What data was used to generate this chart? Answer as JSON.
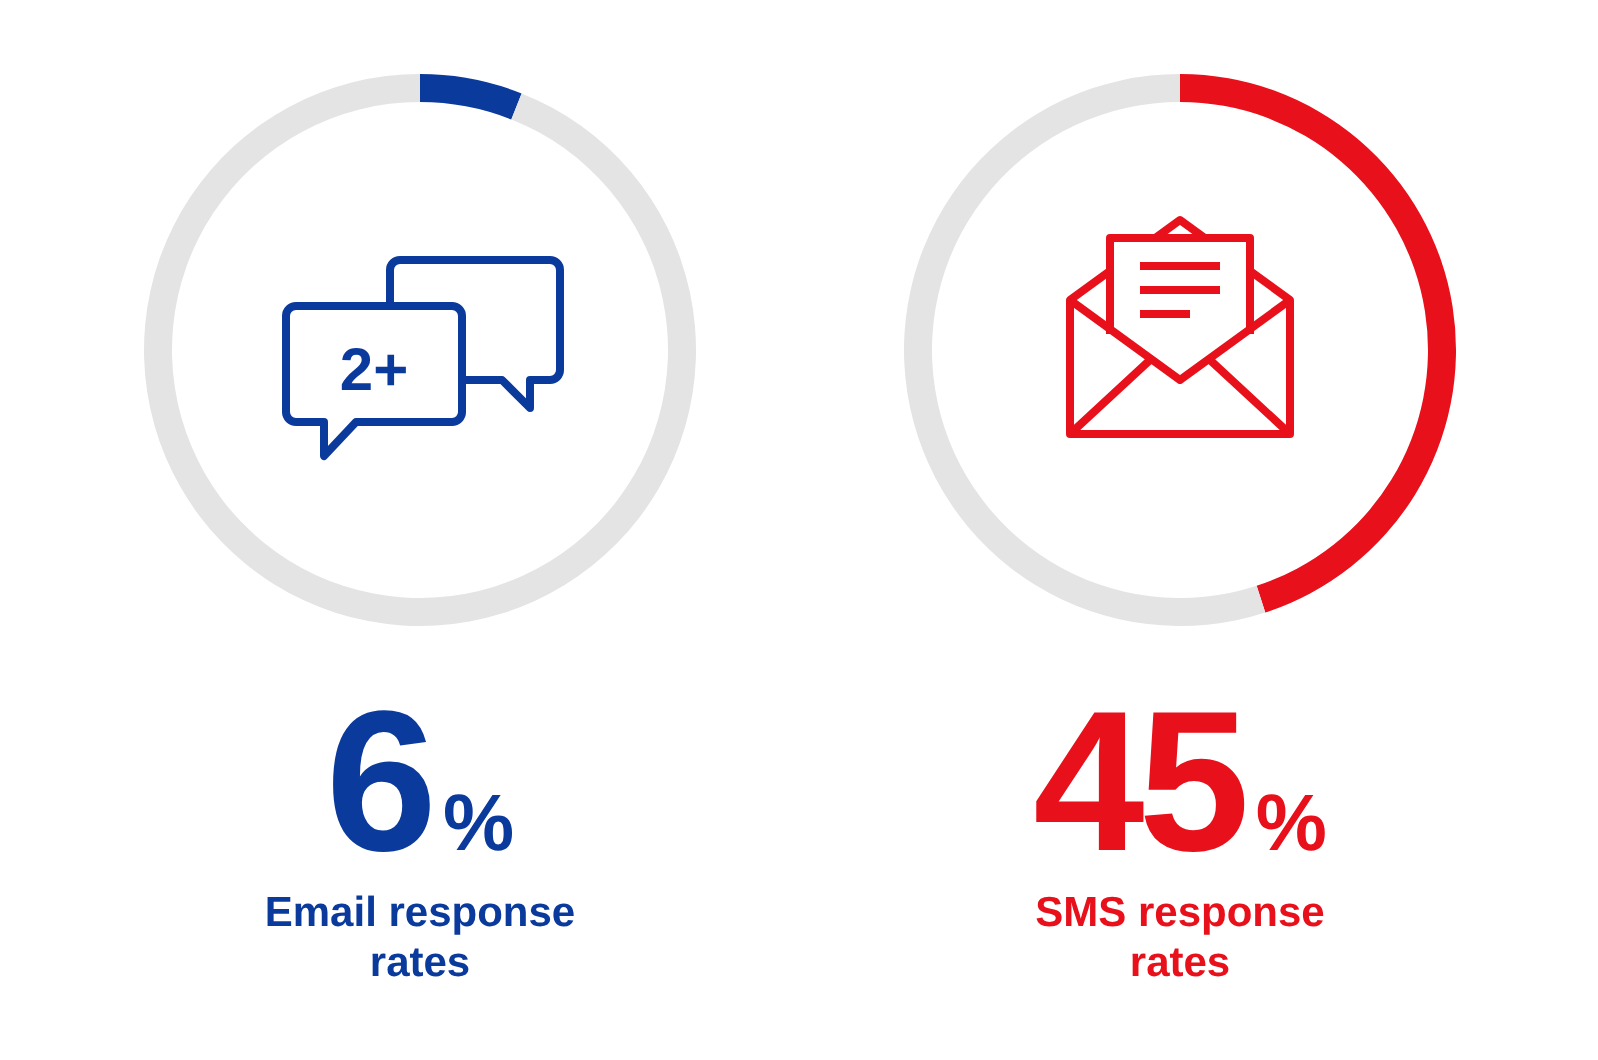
{
  "chart_data": [
    {
      "type": "donut",
      "title": "Email response rates",
      "categories": [
        null,
        null
      ],
      "values": [
        6,
        94
      ],
      "colors": [
        "#0a3a9c",
        "#e4e4e4"
      ],
      "annotations": [
        "2+",
        "6%"
      ]
    },
    {
      "type": "donut",
      "title": "SMS response rates",
      "categories": [
        null,
        null
      ],
      "values": [
        45,
        55
      ],
      "colors": [
        "#e8101a",
        "#e4e4e4"
      ],
      "annotations": [
        "45%"
      ]
    }
  ]
}
